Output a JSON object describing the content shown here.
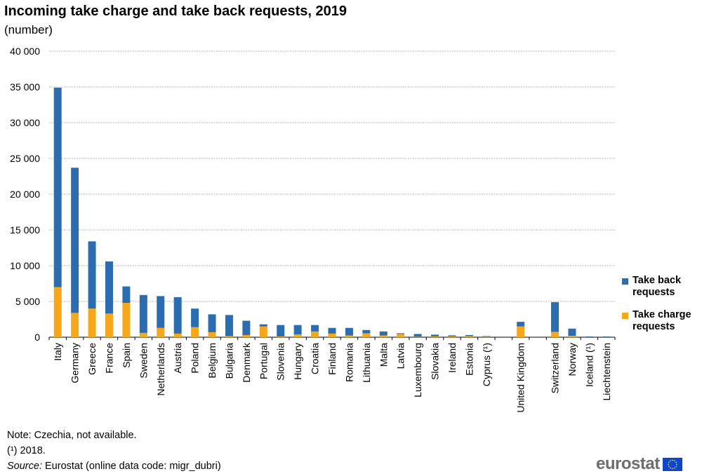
{
  "title": "Incoming take charge and take back requests, 2019",
  "subtitle": "(number)",
  "legend": {
    "take_back": "Take back requests",
    "take_charge": "Take charge requests"
  },
  "colors": {
    "take_back": "#2b6db0",
    "take_charge": "#f7a71c",
    "grid": "#b0b0b0",
    "flag": "#0e47cb",
    "flag_stars": "#ffd700"
  },
  "notes": {
    "note": "Note: Czechia, not available.",
    "footnote": "(¹) 2018.",
    "source_label": "Source:",
    "source_text": " Eurostat (online data code: migr_dubri)"
  },
  "logo": {
    "text": "eurostat",
    "icon": "eu-flag-icon"
  },
  "chart_data": {
    "type": "bar",
    "stacked": true,
    "title": "Incoming take charge and take back requests, 2019",
    "subtitle": "(number)",
    "ylim": [
      0,
      40000
    ],
    "yticks": [
      0,
      5000,
      10000,
      15000,
      20000,
      25000,
      30000,
      35000,
      40000
    ],
    "ytick_labels": [
      "0",
      "5 000",
      "10 000",
      "15 000",
      "20 000",
      "25 000",
      "30 000",
      "35 000",
      "40 000"
    ],
    "grid": true,
    "legend_position": "right",
    "categories": [
      "Italy",
      "Germany",
      "Greece",
      "France",
      "Spain",
      "Sweden",
      "Netherlands",
      "Austria",
      "Poland",
      "Belgium",
      "Bulgaria",
      "Denmark",
      "Portugal",
      "Slovenia",
      "Hungary",
      "Croatia",
      "Finland",
      "Romania",
      "Lithuania",
      "Malta",
      "Latvia",
      "Luxembourg",
      "Slovakia",
      "Ireland",
      "Estonia",
      "Cyprus (¹)",
      "",
      "United Kingdom",
      "",
      "Switzerland",
      "Norway",
      "Iceland (¹)",
      "Liechtenstein"
    ],
    "series": [
      {
        "name": "Take charge requests",
        "values": [
          7000,
          3400,
          4000,
          3300,
          4800,
          600,
          1300,
          500,
          1400,
          700,
          150,
          300,
          1500,
          100,
          400,
          800,
          500,
          250,
          550,
          250,
          450,
          50,
          100,
          100,
          150,
          50,
          null,
          1500,
          null,
          750,
          200,
          20,
          20
        ]
      },
      {
        "name": "Take back requests",
        "values": [
          27900,
          20300,
          9400,
          7300,
          2300,
          5300,
          4450,
          5100,
          2600,
          2500,
          2950,
          2000,
          300,
          1600,
          1300,
          900,
          800,
          1050,
          450,
          550,
          100,
          400,
          250,
          150,
          150,
          100,
          null,
          650,
          null,
          4150,
          1000,
          80,
          80
        ]
      }
    ]
  }
}
